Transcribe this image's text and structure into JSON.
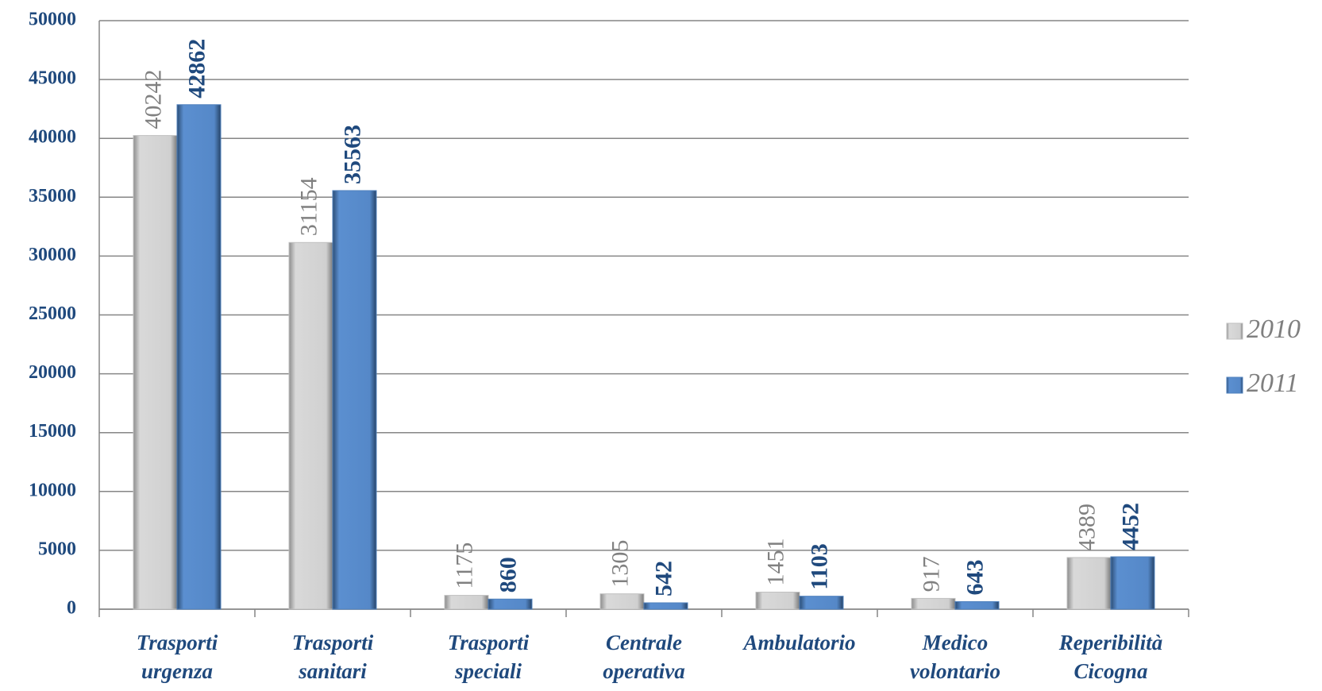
{
  "chart_data": {
    "type": "bar",
    "categories": [
      "Trasporti urgenza",
      "Trasporti sanitari",
      "Trasporti speciali",
      "Centrale operativa",
      "Ambulatorio",
      "Medico volontario",
      "Reperibilità Cicogna"
    ],
    "series": [
      {
        "name": "2010",
        "color": "#c0c0c0",
        "values": [
          40242,
          31154,
          1175,
          1305,
          1451,
          917,
          4389
        ]
      },
      {
        "name": "2011",
        "color": "#4f81bd",
        "values": [
          42862,
          35563,
          860,
          542,
          1103,
          643,
          4452
        ]
      }
    ],
    "ylim": [
      0,
      50000
    ],
    "yticks": [
      0,
      5000,
      10000,
      15000,
      20000,
      25000,
      30000,
      35000,
      40000,
      45000,
      50000
    ],
    "grid": true,
    "legend": "right"
  }
}
